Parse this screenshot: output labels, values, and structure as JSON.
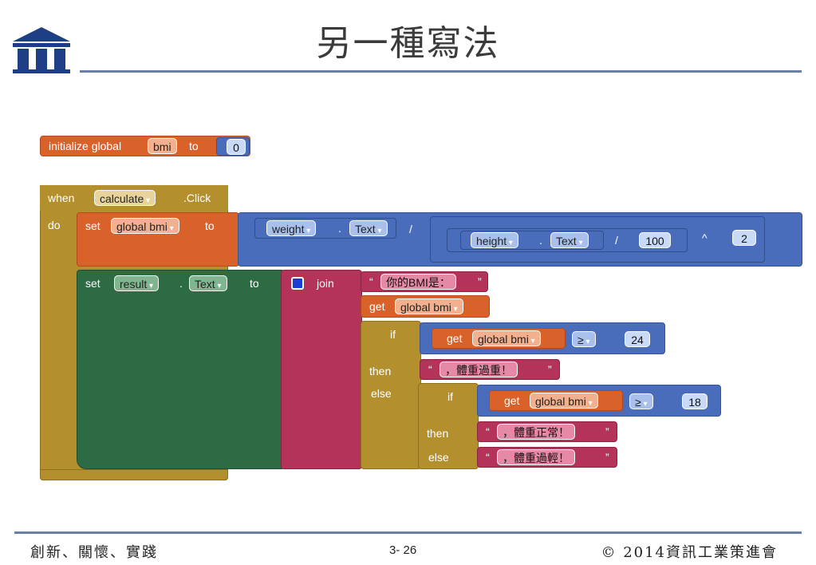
{
  "slide": {
    "title": "另一種寫法",
    "footer_left": "創新、關懷、實踐",
    "page_number": "3- 26",
    "footer_right": "© 2014資訊工業策進會"
  },
  "blocks": {
    "init": {
      "kw_initialize": "initialize global",
      "var_name": "bmi",
      "kw_to": "to",
      "value": "0"
    },
    "event": {
      "kw_when": "when",
      "component": "calculate",
      "event": ".Click",
      "kw_do": "do"
    },
    "set_bmi": {
      "kw_set": "set",
      "var": "global bmi",
      "kw_to": "to",
      "weight_comp": "weight",
      "weight_prop": "Text",
      "dot": ".",
      "div_op": "/",
      "height_comp": "height",
      "height_prop": "Text",
      "div_op2": "/",
      "divisor": "100",
      "pow_op": "^",
      "exponent": "2"
    },
    "set_result": {
      "kw_set": "set",
      "component": "result",
      "dot": ".",
      "prop": "Text",
      "kw_to": "to",
      "kw_join": "join",
      "string1": "你的BMI是：",
      "kw_get": "get",
      "get_var": "global bmi",
      "kw_if": "if",
      "cond1_var": "global bmi",
      "cond1_op": "≥",
      "cond1_val": "24",
      "kw_then": "then",
      "then1_text": "，體重過重！",
      "kw_else": "else",
      "cond2_var": "global bmi",
      "cond2_op": "≥",
      "cond2_val": "18",
      "then2_text": "，體重正常！",
      "else2_text": "，體重過輕！"
    }
  },
  "colors": {
    "title_rule": "#6a7fa6",
    "orange": "#d9622b",
    "gold": "#b38f2e",
    "blue": "#4a6dbb",
    "green": "#2c6b44",
    "pink": "#b43358"
  }
}
